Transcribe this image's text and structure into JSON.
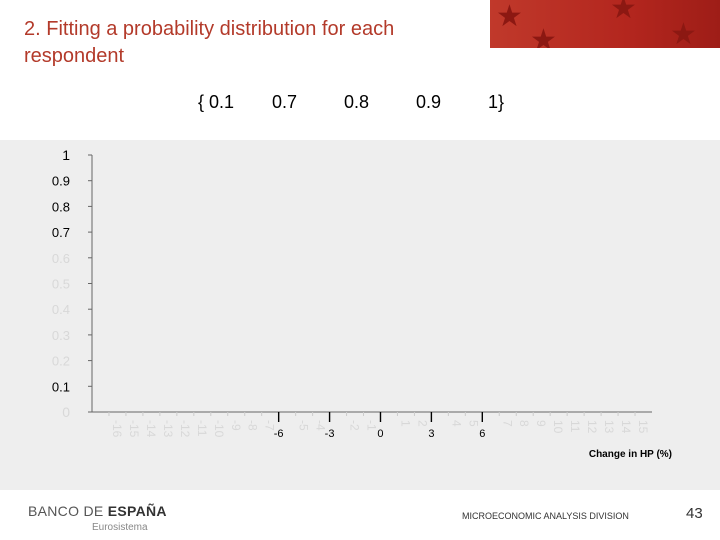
{
  "slide": {
    "title": "2. Fitting a probability distribution for each respondent",
    "set_tokens": [
      "{ 0.1",
      "0.7",
      "0.8",
      "0.9",
      "1}"
    ],
    "footer": {
      "logo_main": "BANCO DE ",
      "logo_bold": "ESPAÑA",
      "logo_sub": "Eurosistema",
      "division": "MICROECONOMIC ANALYSIS DIVISION",
      "page_number": "43"
    }
  },
  "chart_data": {
    "type": "line",
    "title": "",
    "xlabel": "Change in HP (%)",
    "ylabel": "",
    "y_ticks": [
      {
        "value": 0,
        "label": "0",
        "visible": false
      },
      {
        "value": 0.1,
        "label": "0.1",
        "visible": true
      },
      {
        "value": 0.2,
        "label": "0.2",
        "visible": false
      },
      {
        "value": 0.3,
        "label": "0.3",
        "visible": false
      },
      {
        "value": 0.4,
        "label": "0.4",
        "visible": false
      },
      {
        "value": 0.5,
        "label": "0.5",
        "visible": false
      },
      {
        "value": 0.6,
        "label": "0.6",
        "visible": false
      },
      {
        "value": 0.7,
        "label": "0.7",
        "visible": true
      },
      {
        "value": 0.8,
        "label": "0.8",
        "visible": true
      },
      {
        "value": 0.9,
        "label": "0.9",
        "visible": true
      },
      {
        "value": 1,
        "label": "1",
        "visible": true
      }
    ],
    "x_ticks": [
      {
        "value": -6,
        "label": "-6"
      },
      {
        "value": -3,
        "label": "-3"
      },
      {
        "value": 0,
        "label": "0"
      },
      {
        "value": 3,
        "label": "3"
      },
      {
        "value": 6,
        "label": "6"
      }
    ],
    "faded_x_ticks": [
      -16,
      -15,
      -14,
      -13,
      -12,
      -11,
      -10,
      -9,
      -8,
      -7,
      -5,
      -4,
      -2,
      -1,
      1,
      2,
      4,
      5,
      7,
      8,
      9,
      10,
      11,
      12,
      13,
      14,
      15
    ],
    "xlim": [
      -17,
      16
    ],
    "ylim": [
      0,
      1
    ],
    "grid": false,
    "legend": "none",
    "series": [],
    "colors": {
      "title": "#b33a2a",
      "axis": "#666666",
      "visible_label": "#000000",
      "faded_label": "#d8d8d8"
    }
  }
}
